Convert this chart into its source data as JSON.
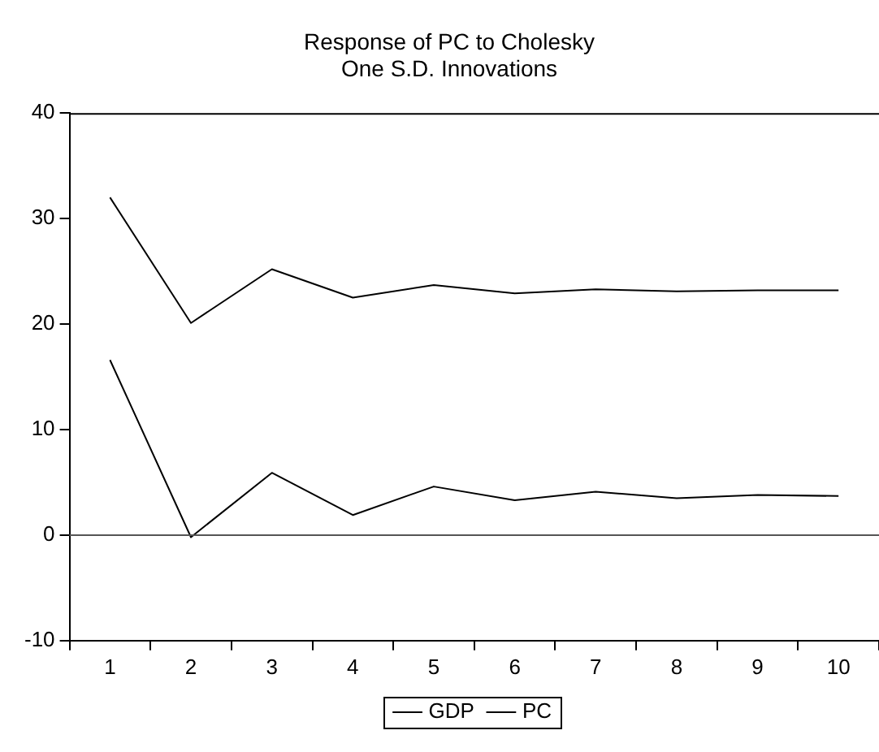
{
  "chart_data": {
    "type": "line",
    "title": [
      "Response of PC to Cholesky",
      "One S.D. Innovations"
    ],
    "categories": [
      "1",
      "2",
      "3",
      "4",
      "5",
      "6",
      "7",
      "8",
      "9",
      "10"
    ],
    "series": [
      {
        "name": "GDP",
        "color": "#000000",
        "values": [
          16.6,
          -0.2,
          5.9,
          1.9,
          4.6,
          3.3,
          4.1,
          3.5,
          3.8,
          3.7
        ]
      },
      {
        "name": "PC",
        "color": "#000000",
        "values": [
          32.0,
          20.1,
          25.2,
          22.5,
          23.7,
          22.9,
          23.3,
          23.1,
          23.2,
          23.2
        ]
      }
    ],
    "ylim": [
      -10,
      40
    ],
    "yticks": [
      -10,
      0,
      10,
      20,
      30,
      40
    ],
    "grid": false,
    "legend": "bottom",
    "marker": "none",
    "line_style": "solid",
    "ref_lines": [
      {
        "axis": "y",
        "value": 0,
        "color": "#555555"
      }
    ]
  }
}
